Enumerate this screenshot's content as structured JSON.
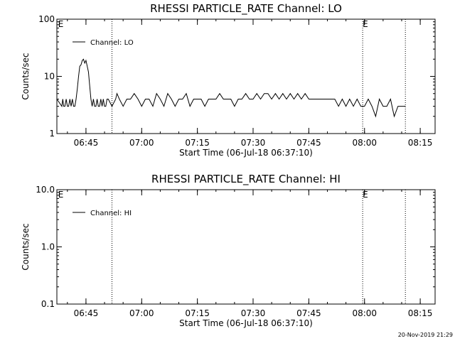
{
  "chart_data": [
    {
      "type": "line",
      "title": "RHESSI PARTICLE_RATE Channel: LO",
      "xlabel": "Start Time (06-Jul-18 06:37:10)",
      "ylabel": "Counts/sec",
      "y_scale": "log",
      "ylim": [
        1,
        100
      ],
      "yticks": [
        1,
        10,
        100
      ],
      "ytick_labels": [
        "1",
        "10",
        "100"
      ],
      "xlim": [
        "06:37:10",
        "08:19:00"
      ],
      "xtick_labels": [
        "06:45",
        "07:00",
        "07:15",
        "07:30",
        "07:45",
        "08:00",
        "08:15"
      ],
      "grid": false,
      "legend": "top-left",
      "series": [
        {
          "name": "Channel: LO",
          "x": [
            "06:37:10",
            "06:38:30",
            "06:38:45",
            "06:39:00",
            "06:39:20",
            "06:39:40",
            "06:40:00",
            "06:40:20",
            "06:40:40",
            "06:41:00",
            "06:41:20",
            "06:41:40",
            "06:42:00",
            "06:42:20",
            "06:42:40",
            "06:43:00",
            "06:43:20",
            "06:43:40",
            "06:44:00",
            "06:44:20",
            "06:44:40",
            "06:45:00",
            "06:45:20",
            "06:45:40",
            "06:46:00",
            "06:46:20",
            "06:46:40",
            "06:47:00",
            "06:47:20",
            "06:47:40",
            "06:48:00",
            "06:48:20",
            "06:48:40",
            "06:49:00",
            "06:49:20",
            "06:49:40",
            "06:50:00",
            "06:50:20",
            "06:50:40",
            "06:51:00",
            "06:52:00",
            "06:53:00",
            "06:53:20",
            "06:54:00",
            "06:55:00",
            "06:56:00",
            "06:57:00",
            "06:58:00",
            "06:59:00",
            "07:00:00",
            "07:01:00",
            "07:02:00",
            "07:03:00",
            "07:04:00",
            "07:05:00",
            "07:06:00",
            "07:07:00",
            "07:08:00",
            "07:09:00",
            "07:10:00",
            "07:11:00",
            "07:12:00",
            "07:13:00",
            "07:14:00",
            "07:15:00",
            "07:16:00",
            "07:17:00",
            "07:18:00",
            "07:19:00",
            "07:20:00",
            "07:21:00",
            "07:22:00",
            "07:23:00",
            "07:24:00",
            "07:25:00",
            "07:26:00",
            "07:27:00",
            "07:28:00",
            "07:29:00",
            "07:30:00",
            "07:31:00",
            "07:32:00",
            "07:33:00",
            "07:34:00",
            "07:35:00",
            "07:36:00",
            "07:37:00",
            "07:38:00",
            "07:39:00",
            "07:40:00",
            "07:41:00",
            "07:42:00",
            "07:43:00",
            "07:44:00",
            "07:45:00",
            "07:46:00",
            "07:47:00",
            "07:48:00",
            "07:49:00",
            "07:50:00",
            "07:51:00",
            "07:52:00",
            "07:53:00",
            "07:54:00",
            "07:55:00",
            "07:56:00",
            "07:57:00",
            "07:58:00",
            "07:59:00",
            "08:00:00",
            "08:01:00",
            "08:02:00",
            "08:03:00",
            "08:04:00",
            "08:05:00",
            "08:06:00",
            "08:07:00",
            "08:08:00",
            "08:09:00",
            "08:10:00",
            "08:11:00"
          ],
          "values": [
            4,
            3,
            4,
            3,
            3,
            4,
            3,
            3,
            4,
            3,
            4,
            3,
            3,
            4,
            6,
            10,
            15,
            16,
            19,
            20,
            17,
            19,
            15,
            12,
            7,
            4,
            3,
            4,
            3,
            3,
            4,
            3,
            3,
            4,
            3,
            4,
            3,
            3,
            4,
            4,
            3,
            4,
            5,
            4,
            3,
            4,
            4,
            5,
            4,
            3,
            4,
            4,
            3,
            5,
            4,
            3,
            5,
            4,
            3,
            4,
            4,
            5,
            3,
            4,
            4,
            4,
            3,
            4,
            4,
            4,
            5,
            4,
            4,
            4,
            3,
            4,
            4,
            5,
            4,
            4,
            5,
            4,
            5,
            5,
            4,
            5,
            4,
            5,
            4,
            5,
            4,
            5,
            4,
            5,
            4,
            4,
            4,
            4,
            4,
            4,
            4,
            4,
            3,
            4,
            3,
            4,
            3,
            4,
            3,
            3,
            4,
            3,
            2,
            4,
            3,
            3,
            4,
            2,
            3,
            3,
            3
          ]
        }
      ],
      "vlines": [
        "06:52:00",
        "07:59:30",
        "08:11:00"
      ],
      "edge_marks": [
        {
          "label": "E",
          "x": "06:37:30"
        },
        {
          "label": "E",
          "x": "07:59:30"
        }
      ]
    },
    {
      "type": "line",
      "title": "RHESSI PARTICLE_RATE Channel: HI",
      "xlabel": "Start Time (06-Jul-18 06:37:10)",
      "ylabel": "Counts/sec",
      "y_scale": "log",
      "ylim": [
        0.1,
        10
      ],
      "yticks": [
        0.1,
        1,
        10
      ],
      "ytick_labels": [
        "0.1",
        "1.0",
        "10.0"
      ],
      "xlim": [
        "06:37:10",
        "08:19:00"
      ],
      "xtick_labels": [
        "06:45",
        "07:00",
        "07:15",
        "07:30",
        "07:45",
        "08:00",
        "08:15"
      ],
      "grid": false,
      "legend": "top-left",
      "series": [
        {
          "name": "Channel: HI",
          "x": [],
          "values": []
        }
      ],
      "vlines": [
        "06:52:00",
        "07:59:30",
        "08:11:00"
      ],
      "edge_marks": [
        {
          "label": "E",
          "x": "06:37:30"
        },
        {
          "label": "E",
          "x": "07:59:30"
        }
      ]
    }
  ],
  "footer": {
    "date_stamp": "20-Nov-2019 21:29"
  }
}
